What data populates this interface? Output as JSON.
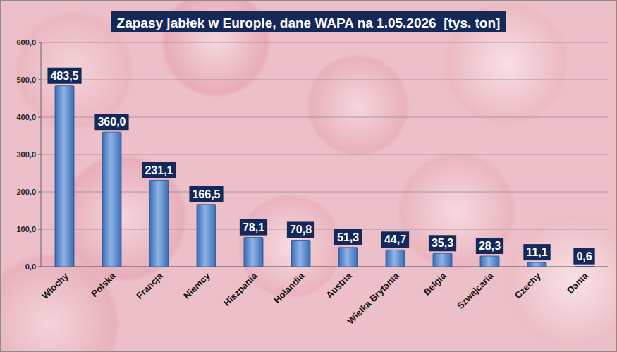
{
  "chart_data": {
    "type": "bar",
    "title": "Zapasy jabłek w Europie, dane WAPA na 1.05.2026  [tys. ton]",
    "categories": [
      "Włochy",
      "Polska",
      "Francja",
      "Niemcy",
      "Hiszpania",
      "Holandia",
      "Austria",
      "Wielka Brytania",
      "Belgia",
      "Szwajcaria",
      "Czechy",
      "Dania"
    ],
    "values": [
      483.5,
      360.0,
      231.1,
      166.5,
      78.1,
      70.8,
      51.3,
      44.7,
      35.3,
      28.3,
      11.1,
      0.6
    ],
    "value_labels": [
      "483,5",
      "360,0",
      "231,1",
      "166,5",
      "78,1",
      "70,8",
      "51,3",
      "44,7",
      "35,3",
      "28,3",
      "11,1",
      "0,6"
    ],
    "color": "#3a6db5",
    "ylim": [
      0,
      600
    ],
    "yticks": [
      {
        "value": 0,
        "label": "0,0"
      },
      {
        "value": 100,
        "label": "100,0"
      },
      {
        "value": 200,
        "label": "200,0"
      },
      {
        "value": 300,
        "label": "300,0"
      },
      {
        "value": 400,
        "label": "400,0"
      },
      {
        "value": 500,
        "label": "500,0"
      },
      {
        "value": 600,
        "label": "600,0"
      }
    ],
    "grid": true,
    "data_labels": true
  }
}
